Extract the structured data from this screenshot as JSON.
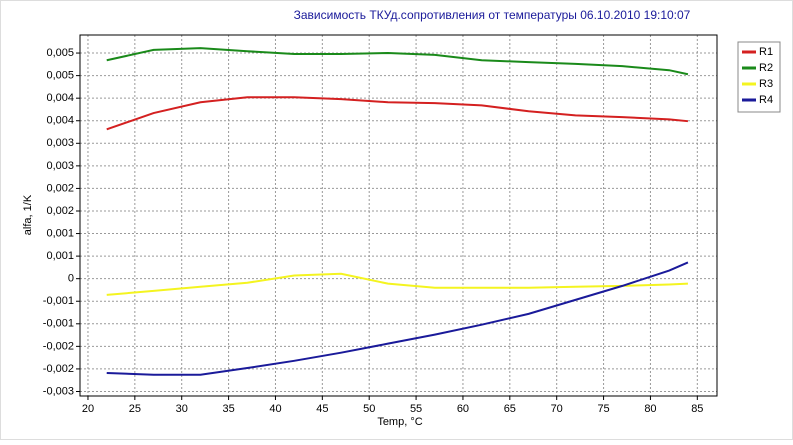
{
  "chart_data": {
    "type": "line",
    "title": "Зависимость ТКУд.сопротивления от температуры  06.10.2010 19:10:07",
    "x_label": "Temp, °C",
    "y_label": "alfa, 1/K",
    "x": [
      22,
      27,
      32,
      37,
      42,
      47,
      52,
      57,
      62,
      67,
      72,
      77,
      82,
      84
    ],
    "series": [
      {
        "name": "R1",
        "color": "#d42020",
        "values": [
          0.00331,
          0.00367,
          0.00391,
          0.00402,
          0.00402,
          0.00398,
          0.00391,
          0.00389,
          0.00384,
          0.00371,
          0.00362,
          0.00358,
          0.00353,
          0.00349
        ]
      },
      {
        "name": "R2",
        "color": "#1a8a1a",
        "values": [
          0.00484,
          0.00507,
          0.00511,
          0.00504,
          0.00498,
          0.00498,
          0.005,
          0.00496,
          0.00484,
          0.0048,
          0.00476,
          0.00471,
          0.00462,
          0.00453
        ]
      },
      {
        "name": "R3",
        "color": "#f4f420",
        "values": [
          -0.00036,
          -0.00027,
          -0.00018,
          -9e-05,
          7e-05,
          0.00011,
          -0.00011,
          -0.0002,
          -0.0002,
          -0.0002,
          -0.00018,
          -0.00016,
          -0.00013,
          -0.00011
        ]
      },
      {
        "name": "R4",
        "color": "#1a1a9a",
        "values": [
          -0.00209,
          -0.00213,
          -0.00213,
          -0.00198,
          -0.00182,
          -0.00164,
          -0.00144,
          -0.00124,
          -0.00102,
          -0.00078,
          -0.00047,
          -0.00016,
          0.00018,
          0.00036
        ]
      }
    ],
    "xlim": [
      19.15,
      87.1
    ],
    "xticks": [
      20,
      25,
      30,
      35,
      40,
      45,
      50,
      55,
      60,
      65,
      70,
      75,
      80,
      85
    ],
    "ylim": [
      -0.0026,
      0.0054
    ],
    "yticks": [
      {
        "value": -0.0025,
        "label": "-0,003"
      },
      {
        "value": -0.002,
        "label": "-0,002"
      },
      {
        "value": -0.0015,
        "label": "-0,002"
      },
      {
        "value": -0.001,
        "label": "-0,001"
      },
      {
        "value": -0.0005,
        "label": "-0,001"
      },
      0,
      {
        "value": 0.0005,
        "label": "0,001"
      },
      {
        "value": 0.001,
        "label": "0,001"
      },
      {
        "value": 0.0015,
        "label": "0,002"
      },
      {
        "value": 0.002,
        "label": "0,002"
      },
      {
        "value": 0.0025,
        "label": "0,003"
      },
      {
        "value": 0.003,
        "label": "0,003"
      },
      {
        "value": 0.0035,
        "label": "0,004"
      },
      {
        "value": 0.004,
        "label": "0,004"
      },
      {
        "value": 0.0045,
        "label": "0,005"
      },
      {
        "value": 0.005,
        "label": "0,005"
      }
    ],
    "grid": true
  }
}
